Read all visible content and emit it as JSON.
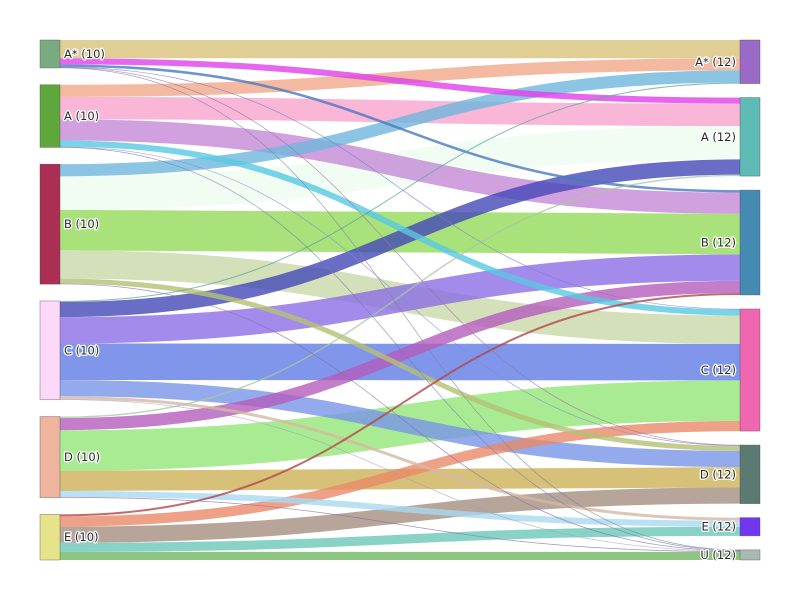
{
  "chart_data": {
    "type": "sankey",
    "source_nodes": [
      {
        "id": "A*",
        "label": "A* (10)",
        "color": "#7aab80"
      },
      {
        "id": "A",
        "label": "A (10)",
        "color": "#5fa63d"
      },
      {
        "id": "B",
        "label": "B (10)",
        "color": "#ab2e53"
      },
      {
        "id": "C",
        "label": "C (10)",
        "color": "#fcd9f8"
      },
      {
        "id": "D",
        "label": "D (10)",
        "color": "#eeb49d"
      },
      {
        "id": "E",
        "label": "E (10)",
        "color": "#e6e38a"
      }
    ],
    "target_nodes": [
      {
        "id": "A*",
        "label": "A* (12)",
        "color": "#9a6ac7"
      },
      {
        "id": "A",
        "label": "A (12)",
        "color": "#5ebbb6"
      },
      {
        "id": "B",
        "label": "B (12)",
        "color": "#458ab3"
      },
      {
        "id": "C",
        "label": "C (12)",
        "color": "#f067b1"
      },
      {
        "id": "D",
        "label": "D (12)",
        "color": "#5b7a72"
      },
      {
        "id": "E",
        "label": "E (12)",
        "color": "#7236ee"
      },
      {
        "id": "U",
        "label": "U (12)",
        "color": "#a8b9b1"
      }
    ],
    "links": [
      {
        "source": "A*",
        "target": "A*",
        "value": 1.8,
        "color": "#d9c27a"
      },
      {
        "source": "A*",
        "target": "A",
        "value": 0.6,
        "color": "#e040e8"
      },
      {
        "source": "A*",
        "target": "B",
        "value": 0.25,
        "color": "#4a78c0"
      },
      {
        "source": "A*",
        "target": "C",
        "value": 0.05,
        "color": "#7a7ad0"
      },
      {
        "source": "A*",
        "target": "D",
        "value": 0.03,
        "color": "#a070a0"
      },
      {
        "source": "A*",
        "target": "U",
        "value": 0.03,
        "color": "#8080a0"
      },
      {
        "source": "A",
        "target": "A*",
        "value": 1.2,
        "color": "#f0a88a"
      },
      {
        "source": "A",
        "target": "A",
        "value": 2.2,
        "color": "#f7a4cc"
      },
      {
        "source": "A",
        "target": "B",
        "value": 2.1,
        "color": "#c48ad6"
      },
      {
        "source": "A",
        "target": "C",
        "value": 0.6,
        "color": "#58c8e4"
      },
      {
        "source": "A",
        "target": "D",
        "value": 0.05,
        "color": "#8a8ad0"
      },
      {
        "source": "A",
        "target": "U",
        "value": 0.03,
        "color": "#7080b0"
      },
      {
        "source": "B",
        "target": "A*",
        "value": 1.2,
        "color": "#6fb7dc"
      },
      {
        "source": "B",
        "target": "A",
        "value": 3.3,
        "color": "#eefdf0"
      },
      {
        "source": "B",
        "target": "B",
        "value": 4.0,
        "color": "#93d95a"
      },
      {
        "source": "B",
        "target": "C",
        "value": 2.8,
        "color": "#c8d8a8"
      },
      {
        "source": "B",
        "target": "D",
        "value": 0.5,
        "color": "#b4c074"
      },
      {
        "source": "B",
        "target": "U",
        "value": 0.04,
        "color": "#8a6ab0"
      },
      {
        "source": "C",
        "target": "A*",
        "value": 0.1,
        "color": "#5aa898"
      },
      {
        "source": "C",
        "target": "A",
        "value": 1.5,
        "color": "#4448b8"
      },
      {
        "source": "C",
        "target": "B",
        "value": 2.6,
        "color": "#8c6ee6"
      },
      {
        "source": "C",
        "target": "C",
        "value": 3.6,
        "color": "#5f7ce6"
      },
      {
        "source": "C",
        "target": "D",
        "value": 1.6,
        "color": "#7896e8"
      },
      {
        "source": "C",
        "target": "E",
        "value": 0.3,
        "color": "#d6b8a4"
      },
      {
        "source": "C",
        "target": "U",
        "value": 0.05,
        "color": "#a0a0c0"
      },
      {
        "source": "D",
        "target": "A",
        "value": 0.15,
        "color": "#a8c8a0"
      },
      {
        "source": "D",
        "target": "B",
        "value": 1.2,
        "color": "#b45cbc"
      },
      {
        "source": "D",
        "target": "C",
        "value": 4.0,
        "color": "#94e678"
      },
      {
        "source": "D",
        "target": "D",
        "value": 2.0,
        "color": "#cdb055"
      },
      {
        "source": "D",
        "target": "E",
        "value": 0.6,
        "color": "#a8d8f0"
      },
      {
        "source": "D",
        "target": "U",
        "value": 0.05,
        "color": "#8a6aa8"
      },
      {
        "source": "E",
        "target": "B",
        "value": 0.2,
        "color": "#b5464a"
      },
      {
        "source": "E",
        "target": "C",
        "value": 1.0,
        "color": "#ea8a68"
      },
      {
        "source": "E",
        "target": "D",
        "value": 1.6,
        "color": "#a58e80"
      },
      {
        "source": "E",
        "target": "E",
        "value": 0.9,
        "color": "#6cc8b8"
      },
      {
        "source": "E",
        "target": "U",
        "value": 0.8,
        "color": "#6fb860"
      }
    ]
  }
}
